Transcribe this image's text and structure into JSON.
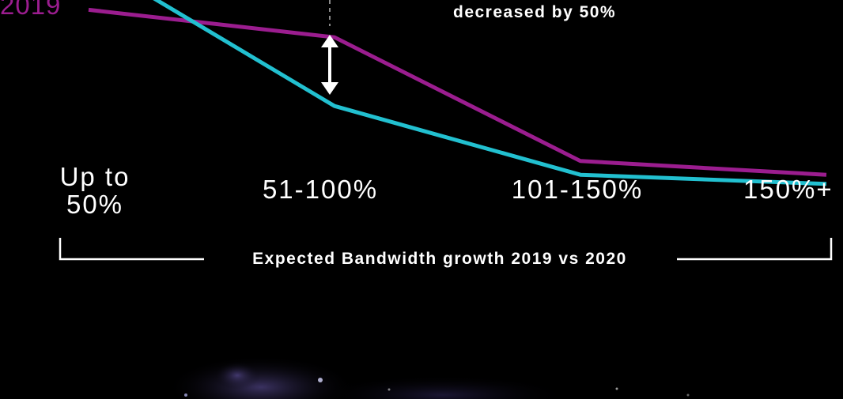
{
  "chart_data": {
    "type": "line",
    "categories": [
      "Up to\n50%",
      "51-100%",
      "101-150%",
      "150%+"
    ],
    "series": [
      {
        "name": "2019",
        "values": [
          52,
          46,
          19,
          16
        ],
        "color": "#9b1d8f"
      },
      {
        "name": "",
        "values": [
          63,
          31,
          16,
          14
        ],
        "color": "#22c0d0"
      }
    ],
    "annotation": "decreased by 50%",
    "xlabel": "Expected Bandwidth growth 2019 vs 2020",
    "ylim": [
      0,
      55
    ]
  }
}
